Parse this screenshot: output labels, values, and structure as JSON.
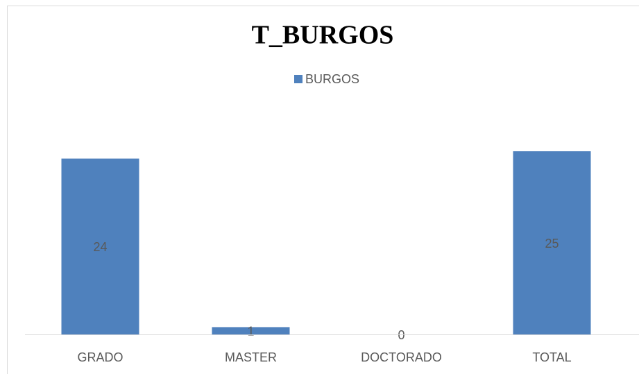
{
  "chart_data": {
    "type": "bar",
    "title": "T_BURGOS",
    "categories": [
      "GRADO",
      "MASTER",
      "DOCTORADO",
      "TOTAL"
    ],
    "series": [
      {
        "name": "BURGOS",
        "color": "#4f81bd",
        "values": [
          24,
          1,
          0,
          25
        ]
      }
    ],
    "legend": "top"
  }
}
